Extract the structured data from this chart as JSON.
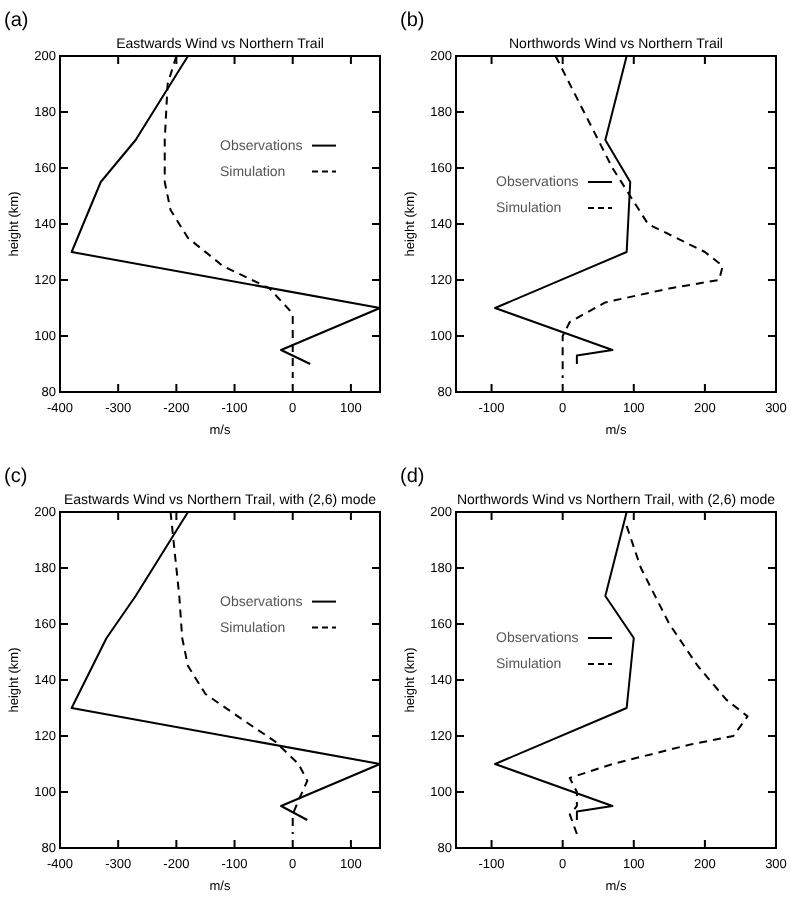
{
  "chart_data": [
    {
      "type": "line",
      "title": "Eastwards Wind vs Northern Trail",
      "xlabel": "m/s",
      "ylabel": "height (km)",
      "annotations": [
        "(a)"
      ],
      "xlim": [
        -400,
        150
      ],
      "xticks": [
        -400,
        -300,
        -200,
        -100,
        0,
        100
      ],
      "ylim": [
        80,
        200
      ],
      "yticks": [
        80,
        100,
        120,
        140,
        160,
        180,
        200
      ],
      "legend": "right",
      "grid": false,
      "series": [
        {
          "name": "Observations",
          "color": "#000000",
          "line_style": "solid",
          "x": [
            -180,
            -270,
            -330,
            -380,
            150,
            -20,
            30
          ],
          "values": [
            200,
            170,
            155,
            130,
            110,
            95,
            90
          ]
        },
        {
          "name": "Simulation",
          "color": "#000000",
          "line_style": "dashed",
          "x": [
            -200,
            -215,
            -220,
            -220,
            -210,
            -180,
            -120,
            -40,
            0,
            0,
            0
          ],
          "values": [
            200,
            190,
            170,
            155,
            145,
            135,
            125,
            117,
            108,
            100,
            85
          ]
        }
      ]
    },
    {
      "type": "line",
      "title": "Northwords Wind vs Northern Trail",
      "xlabel": "m/s",
      "ylabel": "height (km)",
      "annotations": [
        "(b)"
      ],
      "xlim": [
        -150,
        300
      ],
      "xticks": [
        -100,
        0,
        100,
        200,
        300
      ],
      "ylim": [
        80,
        200
      ],
      "yticks": [
        80,
        100,
        120,
        140,
        160,
        180,
        200
      ],
      "legend": "left",
      "grid": false,
      "series": [
        {
          "name": "Observations",
          "color": "#000000",
          "line_style": "solid",
          "x": [
            90,
            70,
            60,
            95,
            90,
            -95,
            70,
            20,
            20
          ],
          "values": [
            200,
            180,
            170,
            155,
            130,
            110,
            95,
            93,
            90
          ]
        },
        {
          "name": "Simulation",
          "color": "#000000",
          "line_style": "dashed",
          "x": [
            -10,
            30,
            70,
            120,
            200,
            225,
            220,
            150,
            60,
            10,
            0,
            0
          ],
          "values": [
            200,
            180,
            160,
            140,
            130,
            125,
            120,
            117,
            112,
            105,
            100,
            85
          ]
        }
      ]
    },
    {
      "type": "line",
      "title": "Eastwards Wind vs Northern Trail, with (2,6) mode",
      "xlabel": "m/s",
      "ylabel": "height (km)",
      "annotations": [
        "(c)"
      ],
      "xlim": [
        -400,
        150
      ],
      "xticks": [
        -400,
        -300,
        -200,
        -100,
        0,
        100
      ],
      "ylim": [
        80,
        200
      ],
      "yticks": [
        80,
        100,
        120,
        140,
        160,
        180,
        200
      ],
      "legend": "right",
      "grid": false,
      "series": [
        {
          "name": "Observations",
          "color": "#000000",
          "line_style": "solid",
          "x": [
            -180,
            -270,
            -320,
            -380,
            150,
            -20,
            25
          ],
          "values": [
            200,
            170,
            155,
            130,
            110,
            95,
            90
          ]
        },
        {
          "name": "Simulation",
          "color": "#000000",
          "line_style": "dashed",
          "x": [
            -210,
            -205,
            -195,
            -190,
            -180,
            -150,
            -80,
            -30,
            10,
            25,
            10,
            0,
            0
          ],
          "values": [
            200,
            190,
            170,
            155,
            145,
            135,
            125,
            118,
            110,
            104,
            97,
            92,
            85
          ]
        }
      ]
    },
    {
      "type": "line",
      "title": "Northwords Wind vs Northern Trail, with (2,6) mode",
      "xlabel": "m/s",
      "ylabel": "height (km)",
      "annotations": [
        "(d)"
      ],
      "xlim": [
        -150,
        300
      ],
      "xticks": [
        -100,
        0,
        100,
        200,
        300
      ],
      "ylim": [
        80,
        200
      ],
      "yticks": [
        80,
        100,
        120,
        140,
        160,
        180,
        200
      ],
      "legend": "left",
      "grid": false,
      "series": [
        {
          "name": "Observations",
          "color": "#000000",
          "line_style": "solid",
          "x": [
            90,
            60,
            100,
            90,
            -95,
            70,
            20,
            20
          ],
          "values": [
            200,
            170,
            155,
            130,
            110,
            95,
            93,
            90
          ]
        },
        {
          "name": "Simulation",
          "color": "#000000",
          "line_style": "dashed",
          "x": [
            90,
            110,
            150,
            190,
            230,
            260,
            240,
            180,
            70,
            10,
            20,
            20,
            10,
            20
          ],
          "values": [
            195,
            180,
            160,
            145,
            133,
            127,
            120,
            117,
            110,
            105,
            100,
            95,
            92,
            85
          ]
        }
      ]
    }
  ]
}
